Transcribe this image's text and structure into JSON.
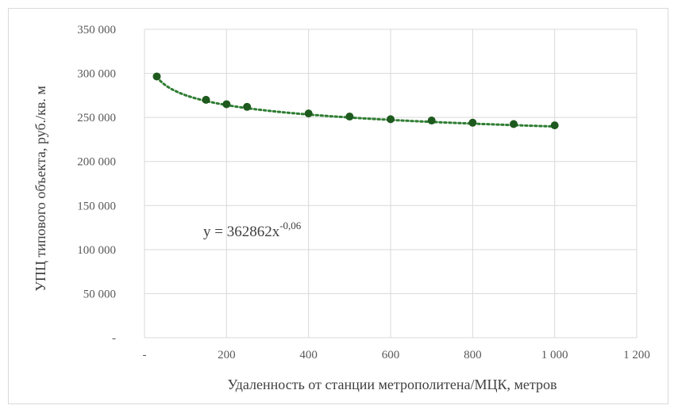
{
  "chart_data": {
    "type": "scatter",
    "xlabel": "Удаленность от станции  метрополитена/МЦК, метров",
    "ylabel": "УПЦ типового объекта, руб./кв. м",
    "xlim": [
      0,
      1200
    ],
    "ylim": [
      0,
      350000
    ],
    "x_ticks": [
      0,
      200,
      400,
      600,
      800,
      1000,
      1200
    ],
    "x_tick_labels": [
      "-",
      "200",
      "400",
      "600",
      "800",
      "1 000",
      "1 200"
    ],
    "y_ticks": [
      0,
      50000,
      100000,
      150000,
      200000,
      250000,
      300000,
      350000
    ],
    "y_tick_labels": [
      "-",
      "50 000",
      "100 000",
      "150 000",
      "200 000",
      "250 000",
      "300 000",
      "350 000"
    ],
    "grid": true,
    "points": [
      {
        "x": 30,
        "y": 296500
      },
      {
        "x": 150,
        "y": 270000
      },
      {
        "x": 200,
        "y": 265000
      },
      {
        "x": 250,
        "y": 262000
      },
      {
        "x": 400,
        "y": 254500
      },
      {
        "x": 500,
        "y": 251000
      },
      {
        "x": 600,
        "y": 248000
      },
      {
        "x": 700,
        "y": 246500
      },
      {
        "x": 800,
        "y": 244000
      },
      {
        "x": 900,
        "y": 242500
      },
      {
        "x": 1000,
        "y": 241000
      }
    ],
    "trendline": {
      "type": "power",
      "coefficient": 362862,
      "exponent": -0.06,
      "x_from": 30,
      "x_to": 1000,
      "equation_main": "y = 362862x",
      "equation_exponent": "-0,06"
    },
    "colors": {
      "marker": "#1e5a1e",
      "trendline": "#2e7d32",
      "grid": "#d9d9d9",
      "text": "#595959"
    }
  }
}
